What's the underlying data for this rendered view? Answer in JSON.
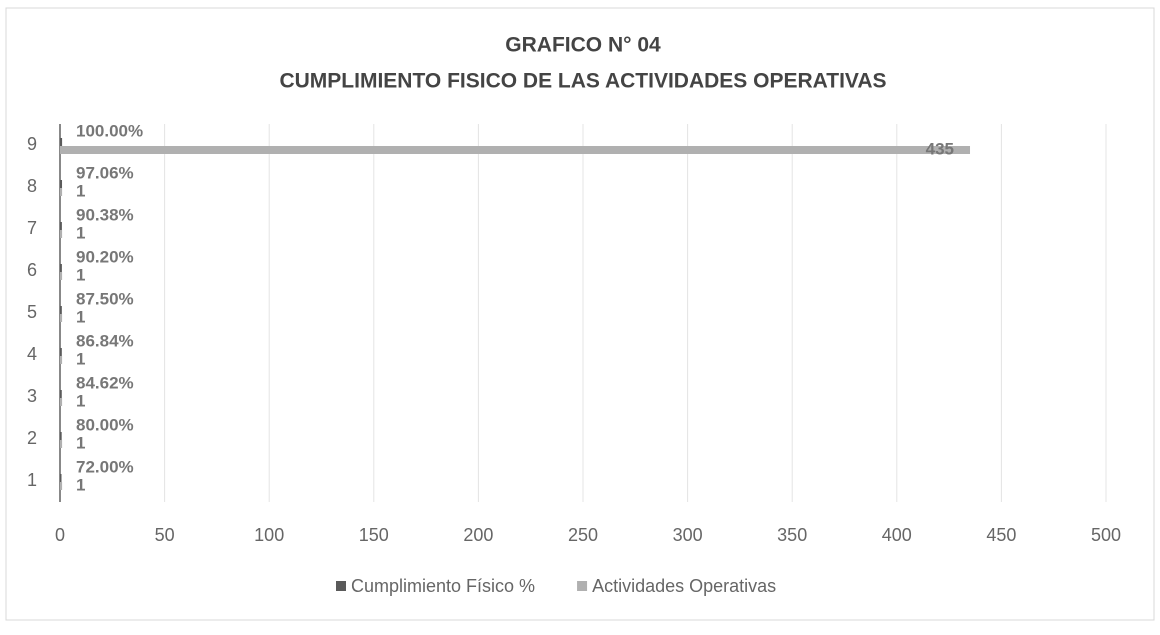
{
  "chart_data": {
    "type": "barh",
    "title": "GRAFICO N° 04",
    "subtitle": "CUMPLIMIENTO FISICO DE LAS ACTIVIDADES OPERATIVAS",
    "categories": [
      "1",
      "2",
      "3",
      "4",
      "5",
      "6",
      "7",
      "8",
      "9"
    ],
    "series": [
      {
        "name": "Cumplimiento Físico %",
        "color": "#5a5a5a",
        "values": [
          0.72,
          0.8,
          0.8462,
          0.8684,
          0.875,
          0.902,
          0.9038,
          0.9706,
          1.0
        ],
        "value_labels": [
          "72.00%",
          "80.00%",
          "84.62%",
          "86.84%",
          "87.50%",
          "90.20%",
          "90.38%",
          "97.06%",
          "100.00%"
        ]
      },
      {
        "name": "Actividades Operativas",
        "color": "#b0b0b0",
        "values": [
          1,
          1,
          1,
          1,
          1,
          1,
          1,
          1,
          435
        ]
      }
    ],
    "xlim": [
      0,
      500
    ],
    "xticks": [
      0,
      50,
      100,
      150,
      200,
      250,
      300,
      350,
      400,
      450,
      500
    ],
    "grid": true,
    "legend": "bottom"
  }
}
